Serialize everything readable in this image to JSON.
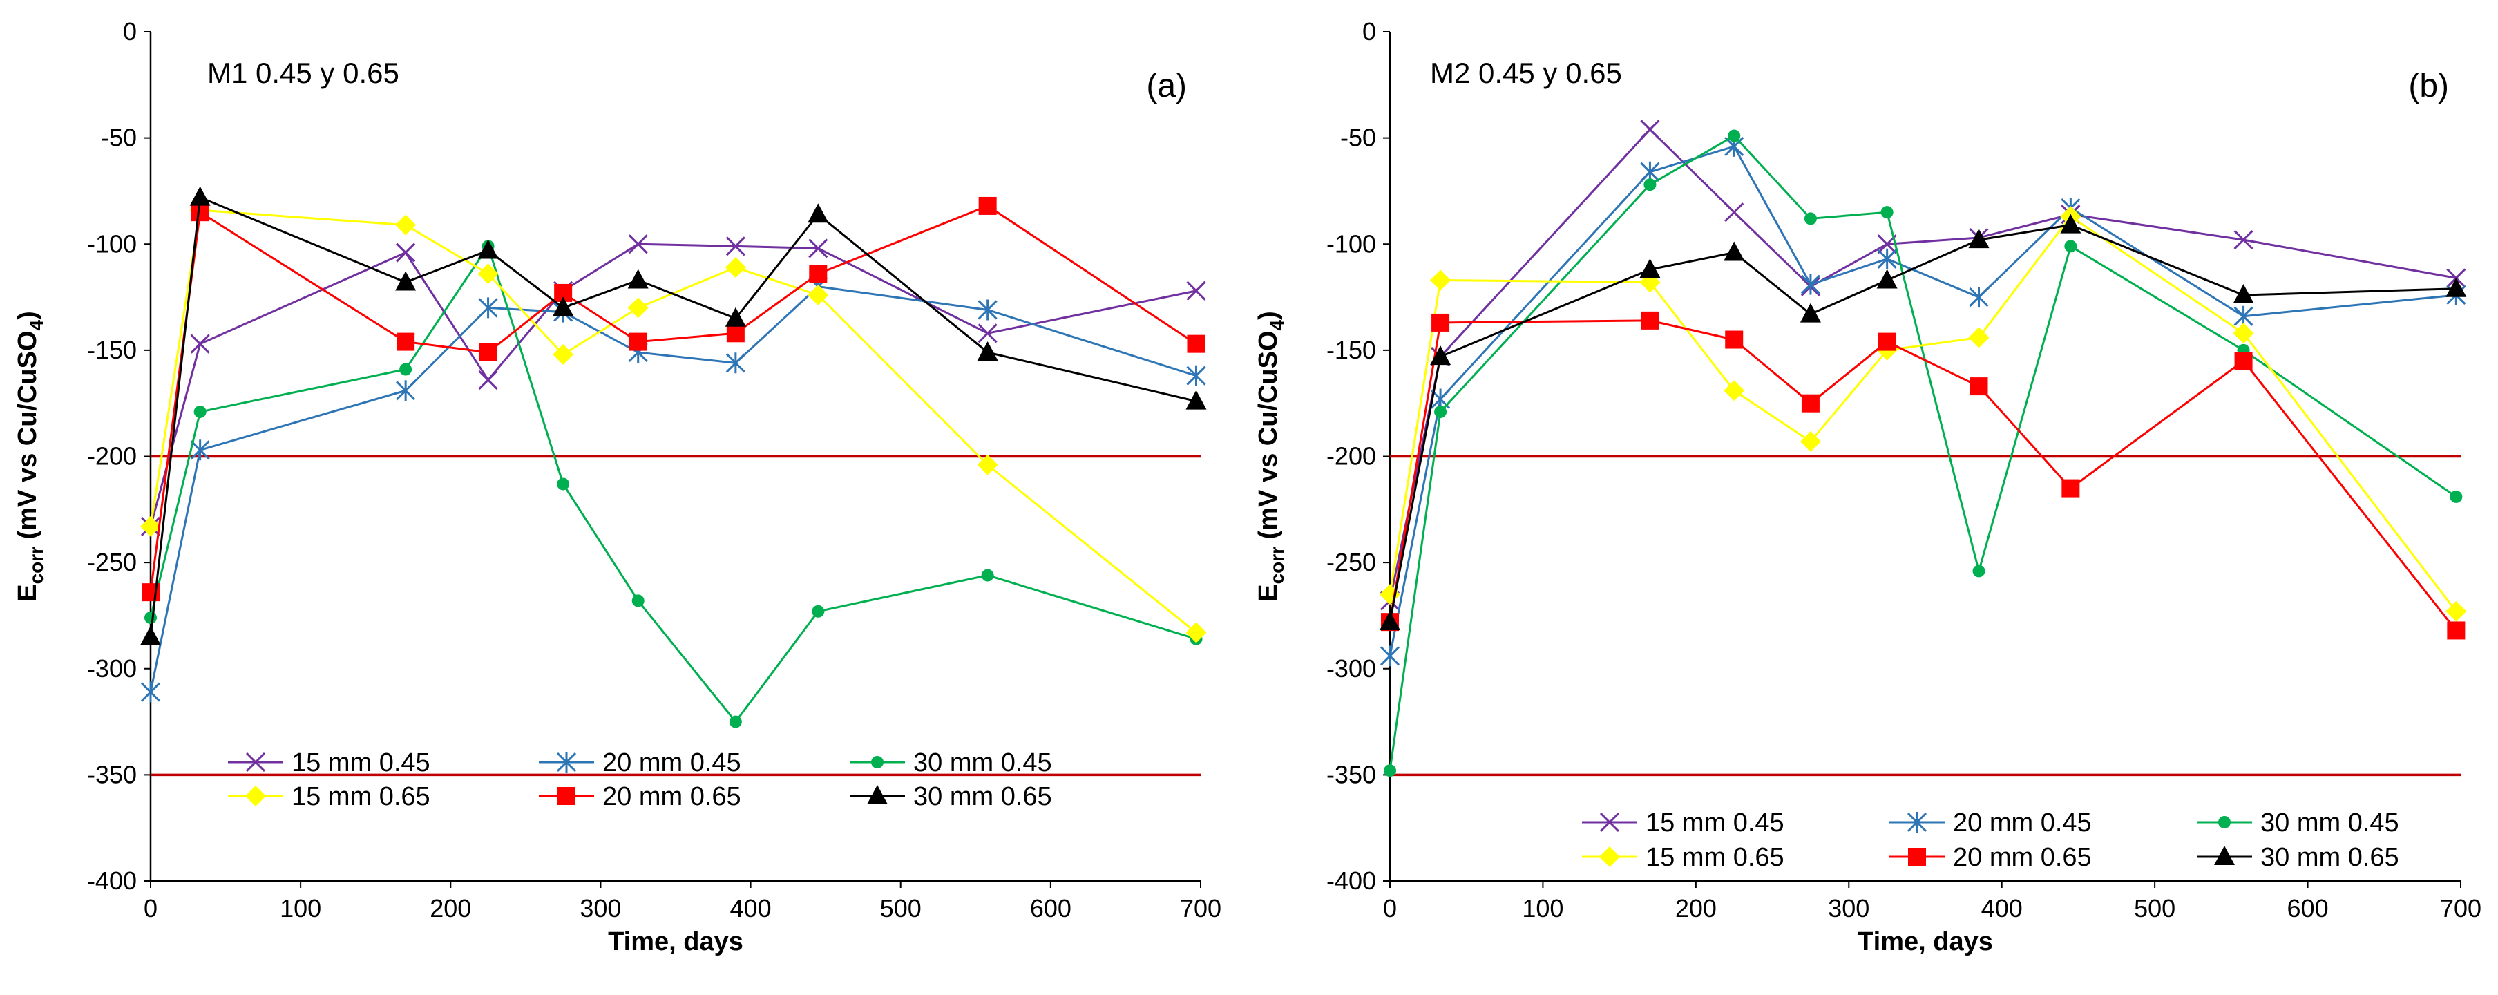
{
  "chart_data": [
    {
      "type": "line",
      "title": "M1  0.45 y 0.65",
      "panel_label": "(a)",
      "xlabel": "Time, days",
      "ylabel": "E",
      "ylabel_sub": "corr",
      "ylabel_rest": " (mV vs Cu/CuSO",
      "ylabel_sub2": "4",
      "ylabel_end": ")",
      "xlim": [
        0,
        700
      ],
      "ylim": [
        -400,
        0
      ],
      "xticks": [
        0,
        100,
        200,
        300,
        400,
        500,
        600,
        700
      ],
      "yticks": [
        0,
        -50,
        -100,
        -150,
        -200,
        -250,
        -300,
        -350,
        -400
      ],
      "reference_lines": [
        -200,
        -350
      ],
      "reference_color": "#C00000",
      "legend_position": "bottom-center",
      "series": [
        {
          "name": "15 mm 0.45",
          "color": "#7030A0",
          "marker": "x",
          "x": [
            0,
            33,
            170,
            225,
            275,
            325,
            390,
            445,
            558,
            697
          ],
          "y": [
            -233,
            -147,
            -104,
            -164,
            -122,
            -100,
            -101,
            -102,
            -142,
            -122
          ]
        },
        {
          "name": "20 mm 0.45",
          "color": "#2E75B6",
          "marker": "asterisk",
          "x": [
            0,
            33,
            170,
            225,
            275,
            325,
            390,
            445,
            558,
            697
          ],
          "y": [
            -311,
            -197,
            -169,
            -130,
            -132,
            -151,
            -156,
            -120,
            -131,
            -162
          ]
        },
        {
          "name": "30 mm 0.45",
          "color": "#00B050",
          "marker": "circle",
          "x": [
            0,
            33,
            170,
            225,
            275,
            325,
            390,
            445,
            558,
            697
          ],
          "y": [
            -276,
            -179,
            -159,
            -101,
            -213,
            -268,
            -325,
            -273,
            -256,
            -286
          ]
        },
        {
          "name": "15 mm 0.65",
          "color": "#FFFF00",
          "marker": "diamond",
          "x": [
            0,
            33,
            170,
            225,
            275,
            325,
            390,
            445,
            558,
            697
          ],
          "y": [
            -233,
            -84,
            -91,
            -114,
            -152,
            -130,
            -111,
            -124,
            -204,
            -283
          ]
        },
        {
          "name": "20 mm 0.65",
          "color": "#FF0000",
          "marker": "square",
          "x": [
            0,
            33,
            170,
            225,
            275,
            325,
            390,
            445,
            558,
            697
          ],
          "y": [
            -264,
            -85,
            -146,
            -151,
            -123,
            -146,
            -142,
            -114,
            -82,
            -147
          ]
        },
        {
          "name": "30 mm 0.65",
          "color": "#000000",
          "marker": "triangle",
          "x": [
            0,
            33,
            170,
            225,
            275,
            325,
            390,
            445,
            558,
            697
          ],
          "y": [
            -285,
            -78,
            -118,
            -103,
            -130,
            -117,
            -135,
            -86,
            -151,
            -174
          ]
        }
      ]
    },
    {
      "type": "line",
      "title": "M2  0.45 y 0.65",
      "panel_label": "(b)",
      "xlabel": "Time, days",
      "ylabel": "E",
      "ylabel_sub": "corr",
      "ylabel_rest": " (mV vs Cu/CuSO",
      "ylabel_sub2": "4",
      "ylabel_end": ")",
      "xlim": [
        0,
        700
      ],
      "ylim": [
        -400,
        0
      ],
      "xticks": [
        0,
        100,
        200,
        300,
        400,
        500,
        600,
        700
      ],
      "yticks": [
        0,
        -50,
        -100,
        -150,
        -200,
        -250,
        -300,
        -350,
        -400
      ],
      "reference_lines": [
        -200,
        -350
      ],
      "reference_color": "#C00000",
      "legend_position": "bottom-right",
      "series": [
        {
          "name": "15 mm 0.45",
          "color": "#7030A0",
          "marker": "x",
          "x": [
            0,
            33,
            170,
            225,
            275,
            325,
            385,
            445,
            558,
            697
          ],
          "y": [
            -268,
            -153,
            -46,
            -85,
            -120,
            -100,
            -97,
            -86,
            -98,
            -116
          ]
        },
        {
          "name": "20 mm 0.45",
          "color": "#2E75B6",
          "marker": "asterisk",
          "x": [
            0,
            33,
            170,
            225,
            275,
            325,
            385,
            445,
            558,
            697
          ],
          "y": [
            -294,
            -173,
            -66,
            -54,
            -119,
            -107,
            -125,
            -83,
            -134,
            -124
          ]
        },
        {
          "name": "30 mm 0.45",
          "color": "#00B050",
          "marker": "circle",
          "x": [
            0,
            33,
            170,
            225,
            275,
            325,
            385,
            445,
            558,
            697
          ],
          "y": [
            -348,
            -179,
            -72,
            -49,
            -88,
            -85,
            -254,
            -101,
            -150,
            -219
          ]
        },
        {
          "name": "15 mm 0.65",
          "color": "#FFFF00",
          "marker": "diamond",
          "x": [
            0,
            33,
            170,
            225,
            275,
            325,
            385,
            445,
            558,
            697
          ],
          "y": [
            -265,
            -117,
            -118,
            -169,
            -193,
            -150,
            -144,
            -87,
            -142,
            -273
          ]
        },
        {
          "name": "20 mm 0.65",
          "color": "#FF0000",
          "marker": "square",
          "x": [
            0,
            33,
            170,
            225,
            275,
            325,
            385,
            445,
            558,
            697
          ],
          "y": [
            -278,
            -137,
            -136,
            -145,
            -175,
            -146,
            -167,
            -215,
            -155,
            -282
          ]
        },
        {
          "name": "30 mm 0.65",
          "color": "#000000",
          "marker": "triangle",
          "x": [
            0,
            33,
            170,
            225,
            275,
            325,
            385,
            445,
            558,
            697
          ],
          "y": [
            -278,
            -153,
            -112,
            -104,
            -133,
            -117,
            -98,
            -91,
            -124,
            -121
          ]
        }
      ]
    }
  ]
}
